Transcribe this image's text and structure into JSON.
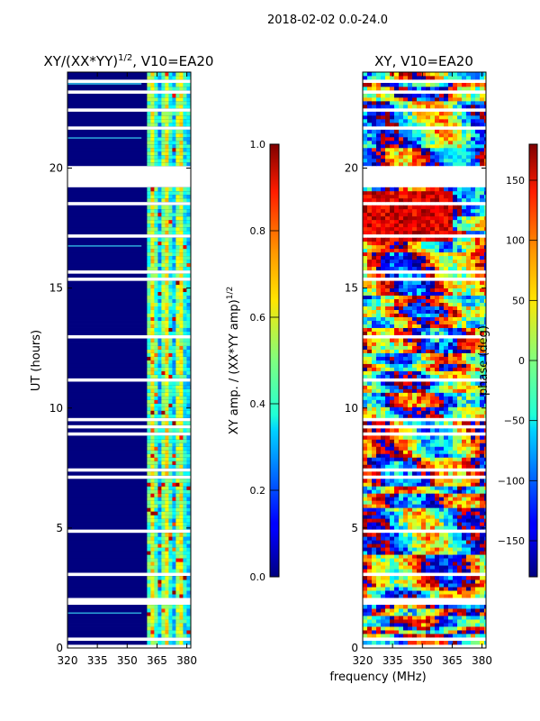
{
  "figure": {
    "suptitle": "2018-02-02 0.0-24.0",
    "xlabel_shared": "frequency (MHz)"
  },
  "chart_data": [
    {
      "type": "heatmap",
      "title_main": "XY/(XX*YY)",
      "title_exp": "1/2",
      "title_tail": ", V10=EA20",
      "xlabel": "",
      "ylabel": "UT (hours)",
      "xlim": [
        320,
        382
      ],
      "ylim": [
        0,
        24
      ],
      "xticks": [
        "320",
        "335",
        "350",
        "365",
        "380"
      ],
      "xtick_values": [
        320,
        335,
        350,
        365,
        380
      ],
      "yticks": [
        "0",
        "5",
        "10",
        "15",
        "20"
      ],
      "ytick_values": [
        0,
        5,
        10,
        15,
        20
      ],
      "colormap": "jet",
      "colorbar": {
        "label_main": "XY amp. / (XX*YY amp)",
        "label_exp": "1/2",
        "range": [
          0.0,
          1.0
        ],
        "ticks": [
          "0.0",
          "0.2",
          "0.4",
          "0.6",
          "0.8",
          "1.0"
        ],
        "tick_values": [
          0.0,
          0.2,
          0.4,
          0.6,
          0.8,
          1.0
        ]
      },
      "flagged_ut_hours": [
        [
          0.0,
          0.15
        ],
        [
          0.32,
          0.48
        ],
        [
          1.78,
          2.05
        ],
        [
          19.15,
          19.9
        ],
        [
          22.3,
          22.55
        ]
      ],
      "active_band_mhz": [
        360,
        382
      ]
    },
    {
      "type": "heatmap",
      "title_main": "XY, V10=EA20",
      "xlabel": "frequency (MHz)",
      "ylabel": "",
      "xlim": [
        320,
        382
      ],
      "ylim": [
        0,
        24
      ],
      "xticks": [
        "320",
        "335",
        "350",
        "365",
        "380"
      ],
      "xtick_values": [
        320,
        335,
        350,
        365,
        380
      ],
      "yticks": [
        "0",
        "5",
        "10",
        "15",
        "20"
      ],
      "ytick_values": [
        0,
        5,
        10,
        15,
        20
      ],
      "colormap": "jet",
      "colorbar": {
        "label_main": "phase (deg)",
        "range": [
          -180,
          180
        ],
        "ticks": [
          "−150",
          "−100",
          "−50",
          "0",
          "50",
          "100",
          "150"
        ],
        "tick_values": [
          -150,
          -100,
          -50,
          0,
          50,
          100,
          150
        ]
      },
      "flagged_ut_hours": [
        [
          0.0,
          0.15
        ],
        [
          0.32,
          0.48
        ],
        [
          1.78,
          2.05
        ],
        [
          19.15,
          19.9
        ],
        [
          22.3,
          22.55
        ]
      ]
    }
  ]
}
